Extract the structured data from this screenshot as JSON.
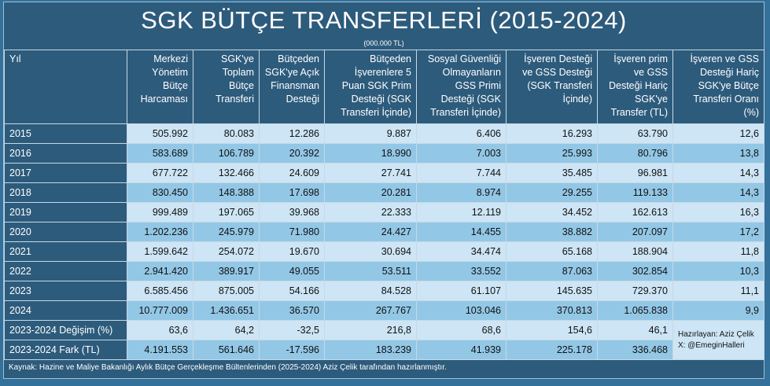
{
  "title": "SGK BÜTÇE TRANSFERLERİ (2015-2024)",
  "unit": "(000.000 TL)",
  "columns": [
    "Yıl",
    "Merkezi Yönetim Bütçe Harcaması",
    "SGK'ye Toplam Bütçe Transferi",
    "Bütçeden SGK'ye Açık Finansman Desteği",
    "Bütçeden İşverenlere 5 Puan SGK Prim Desteği (SGK Transferi İçinde)",
    "Sosyal Güvenliği Olmayanların GSS Primi Desteği (SGK Transferi İçinde)",
    "İşveren Desteği ve GSS Desteği (SGK Transferi İçinde)",
    "İşveren prim ve GSS Desteği Hariç SGK'ye Transfer (TL)",
    "İşveren ve GSS Desteği Hariç SGK'ye Bütçe Transferi Oranı (%)"
  ],
  "rows": [
    [
      "2015",
      "505.992",
      "80.083",
      "12.286",
      "9.887",
      "6.406",
      "16.293",
      "63.790",
      "12,6"
    ],
    [
      "2016",
      "583.689",
      "106.789",
      "20.392",
      "18.990",
      "7.003",
      "25.993",
      "80.796",
      "13,8"
    ],
    [
      "2017",
      "677.722",
      "132.466",
      "24.609",
      "27.741",
      "7.744",
      "35.485",
      "96.981",
      "14,3"
    ],
    [
      "2018",
      "830.450",
      "148.388",
      "17.698",
      "20.281",
      "8.974",
      "29.255",
      "119.133",
      "14,3"
    ],
    [
      "2019",
      "999.489",
      "197.065",
      "39.968",
      "22.333",
      "12.119",
      "34.452",
      "162.613",
      "16,3"
    ],
    [
      "2020",
      "1.202.236",
      "245.979",
      "71.980",
      "24.427",
      "14.455",
      "38.882",
      "207.097",
      "17,2"
    ],
    [
      "2021",
      "1.599.642",
      "254.072",
      "19.670",
      "30.694",
      "34.474",
      "65.168",
      "188.904",
      "11,8"
    ],
    [
      "2022",
      "2.941.420",
      "389.917",
      "49.055",
      "53.511",
      "33.552",
      "87.063",
      "302.854",
      "10,3"
    ],
    [
      "2023",
      "6.585.456",
      "875.005",
      "54.166",
      "84.528",
      "61.107",
      "145.635",
      "729.370",
      "11,1"
    ],
    [
      "2024",
      "10.777.009",
      "1.436.651",
      "36.570",
      "267.767",
      "103.046",
      "370.813",
      "1.065.838",
      "9,9"
    ],
    [
      "2023-2024 Değişim (%)",
      "63,6",
      "64,2",
      "-32,5",
      "216,8",
      "68,6",
      "154,6",
      "46,1"
    ],
    [
      "2023-2024 Fark (TL)",
      "4.191.553",
      "561.646",
      "-17.596",
      "183.239",
      "41.939",
      "225.178",
      "336.468"
    ]
  ],
  "credit": {
    "author": "Hazırlayan:  Aziz Çelik",
    "handle": "X: @EmeginHalleri"
  },
  "source": "Kaynak: Hazine ve Maliye Bakanlığı Aylık Bütçe Gerçekleşme Bültenlerinden (2025-2024) Aziz Çelik tarafından hazırlanmıştır."
}
